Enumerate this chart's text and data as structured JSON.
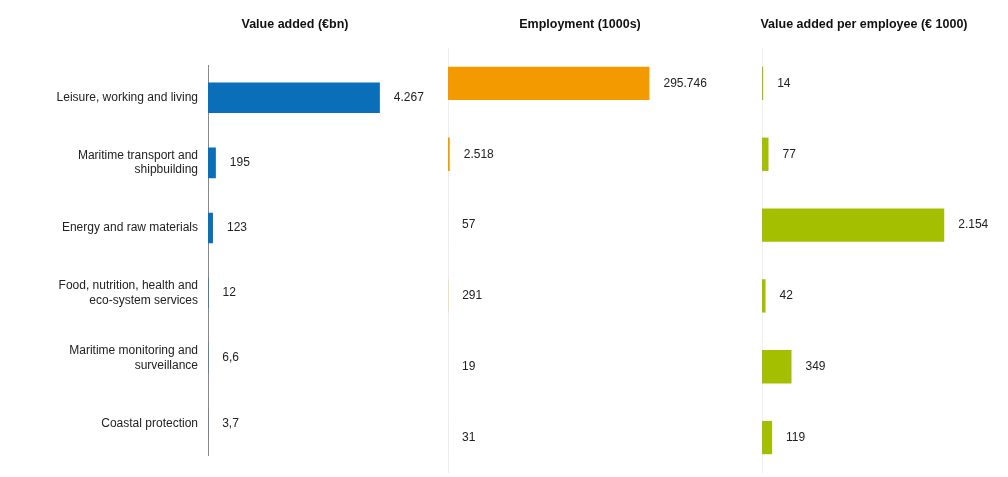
{
  "chart_data": [
    {
      "type": "bar",
      "orientation": "horizontal",
      "title": "Value added (€bn)",
      "categories": [
        "Leisure, working and living",
        "Maritime transport and shipbuilding",
        "Energy and raw materials",
        "Food, nutrition, health and eco-system services",
        "Maritime monitoring and surveillance",
        "Coastal protection"
      ],
      "values": [
        4267,
        195,
        123,
        12,
        6.6,
        3.7
      ],
      "value_labels": [
        "4.267",
        "195",
        "123",
        "12",
        "6,6",
        "3,7"
      ],
      "color": "#0a6fb8",
      "tick_labels": "y"
    },
    {
      "type": "bar",
      "orientation": "horizontal",
      "title": "Employment (1000s)",
      "categories": [
        null,
        null,
        null,
        null,
        null,
        null
      ],
      "values": [
        295746,
        2518,
        57,
        291,
        19,
        31
      ],
      "value_labels": [
        "295.746",
        "2.518",
        "57",
        "291",
        "19",
        "31"
      ],
      "color": "#f39a00",
      "tick_labels": false
    },
    {
      "type": "bar",
      "orientation": "horizontal",
      "title": "Value added per employee (€ 1000)",
      "categories": [
        null,
        null,
        null,
        null,
        null,
        null
      ],
      "values": [
        14,
        77,
        2154,
        42,
        349,
        119
      ],
      "value_labels": [
        "14",
        "77",
        "2.154",
        "42",
        "349",
        "119"
      ],
      "color": "#a3bf00",
      "tick_labels": false
    }
  ]
}
